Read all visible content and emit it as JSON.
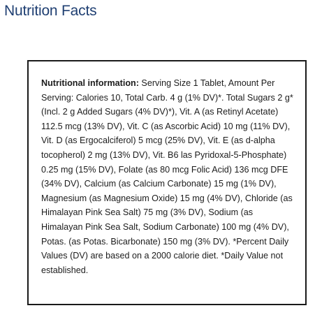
{
  "heading": "Nutrition Facts",
  "facts": {
    "label": "Nutritional information:",
    "body": " Serving Size 1 Tablet, Amount Per Serving: Calories 10, Total Carb. 4 g (1% DV)*. Total Sugars 2 g* (Incl. 2 g Added Sugars (4% DV)*), Vit. A (as Retinyl Acetate) 112.5 mcg (13% DV), Vit. C (as Ascorbic Acid) 10 mg (11% DV), Vit. D (as Ergocalciferol) 5 mcg (25% DV), Vit. E (as d-alpha tocopherol) 2 mg (13% DV), Vit. B6 las Pyridoxal-5-Phosphate) 0.25 mg (15% DV), Folate (as 80 mcg Folic Acid) 136 mcg DFE (34% DV), Calcium (as Calcium Carbonate) 15 mg (1% DV), Magnesium (as Magnesium Oxide) 15 mg (4% DV), Chloride (as Himalayan Pink Sea Salt) 75 mg (3% DV), Sodium (as Himalayan Pink Sea Salt, Sodium Carbonate) 100 mg (4% DV), Potas. (as Potas. Bicarbonate) 150 mg (3% DV). *Percent Daily Values (DV) are based on a 2000 calorie diet. *Daily Value not established."
  },
  "colors": {
    "heading": "#1f3f72",
    "border": "#1a1a1a",
    "text": "#1c1c1c"
  }
}
